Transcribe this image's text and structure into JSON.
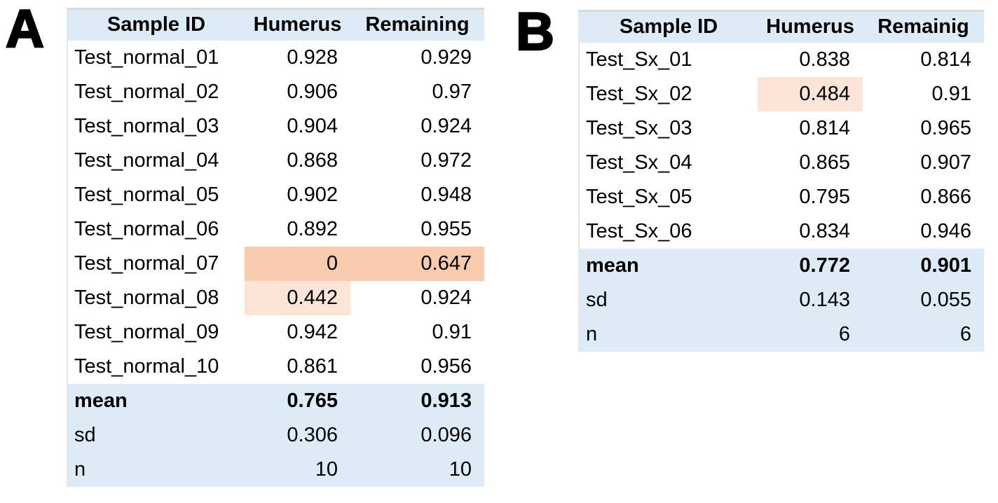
{
  "colors": {
    "header_bg": "#DDEBF7",
    "summary_bg": "#DDEBF7",
    "highlight_strong": "#F8CBAD",
    "highlight_light": "#FCE4D6",
    "border_gray": "#D9D9D9",
    "text_color": "#000000"
  },
  "panels": [
    {
      "label": "A",
      "columns": [
        "Sample ID",
        "Humerus",
        "Remaining"
      ],
      "rows": [
        {
          "id": "Test_normal_01",
          "humerus": "0.928",
          "remaining": "0.929"
        },
        {
          "id": "Test_normal_02",
          "humerus": "0.906",
          "remaining": "0.97"
        },
        {
          "id": "Test_normal_03",
          "humerus": "0.904",
          "remaining": "0.924"
        },
        {
          "id": "Test_normal_04",
          "humerus": "0.868",
          "remaining": "0.972"
        },
        {
          "id": "Test_normal_05",
          "humerus": "0.902",
          "remaining": "0.948"
        },
        {
          "id": "Test_normal_06",
          "humerus": "0.892",
          "remaining": "0.955"
        },
        {
          "id": "Test_normal_07",
          "humerus": "0",
          "remaining": "0.647",
          "humerus_highlight": "strong",
          "remaining_highlight": "strong"
        },
        {
          "id": "Test_normal_08",
          "humerus": "0.442",
          "remaining": "0.924",
          "humerus_highlight": "light"
        },
        {
          "id": "Test_normal_09",
          "humerus": "0.942",
          "remaining": "0.91"
        },
        {
          "id": "Test_normal_10",
          "humerus": "0.861",
          "remaining": "0.956"
        }
      ],
      "summary": [
        {
          "label": "mean",
          "humerus": "0.765",
          "remaining": "0.913",
          "bold": true
        },
        {
          "label": "sd",
          "humerus": "0.306",
          "remaining": "0.096"
        },
        {
          "label": "n",
          "humerus": "10",
          "remaining": "10"
        }
      ]
    },
    {
      "label": "B",
      "columns": [
        "Sample ID",
        "Humerus",
        "Remainig"
      ],
      "rows": [
        {
          "id": "Test_Sx_01",
          "humerus": "0.838",
          "remaining": "0.814"
        },
        {
          "id": "Test_Sx_02",
          "humerus": "0.484",
          "remaining": "0.91",
          "humerus_highlight": "light"
        },
        {
          "id": "Test_Sx_03",
          "humerus": "0.814",
          "remaining": "0.965"
        },
        {
          "id": "Test_Sx_04",
          "humerus": "0.865",
          "remaining": "0.907"
        },
        {
          "id": "Test_Sx_05",
          "humerus": "0.795",
          "remaining": "0.866"
        },
        {
          "id": "Test_Sx_06",
          "humerus": "0.834",
          "remaining": "0.946"
        }
      ],
      "summary": [
        {
          "label": "mean",
          "humerus": "0.772",
          "remaining": "0.901",
          "bold": true
        },
        {
          "label": "sd",
          "humerus": "0.143",
          "remaining": "0.055"
        },
        {
          "label": "n",
          "humerus": "6",
          "remaining": "6"
        }
      ]
    }
  ]
}
